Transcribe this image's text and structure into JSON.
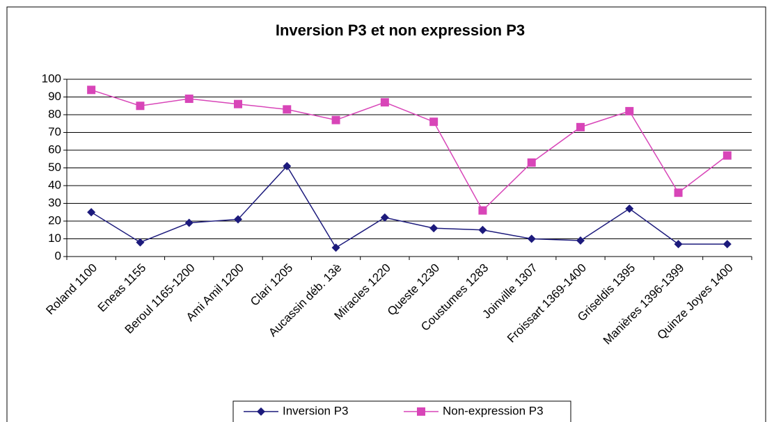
{
  "chart_data": {
    "type": "line",
    "title": "Inversion P3 et non expression P3",
    "categories": [
      "Roland 1100",
      "Eneas 1155",
      "Beroul 1165-1200",
      "Ami Amil 1200",
      "Clari 1205",
      "Aucassin déb. 13è",
      "Miracles 1220",
      "Queste 1230",
      "Coustumes 1283",
      "Joinville 1307",
      "Froissart 1369-1400",
      "Griseldis 1395",
      "Manières 1396-1399",
      "Quinze Joyes 1400"
    ],
    "series": [
      {
        "name": "Inversion P3",
        "color": "#1c1a7c",
        "marker": "diamond",
        "values": [
          25,
          8,
          19,
          21,
          51,
          5,
          22,
          16,
          15,
          10,
          9,
          27,
          7,
          7
        ]
      },
      {
        "name": "Non-expression P3",
        "color": "#d845b8",
        "marker": "square",
        "values": [
          94,
          85,
          89,
          86,
          83,
          77,
          87,
          76,
          26,
          53,
          73,
          82,
          36,
          57
        ]
      }
    ],
    "ylim": [
      0,
      100
    ],
    "yticks": [
      0,
      10,
      20,
      30,
      40,
      50,
      60,
      70,
      80,
      90,
      100
    ],
    "grid": true,
    "legend": "bottom"
  }
}
